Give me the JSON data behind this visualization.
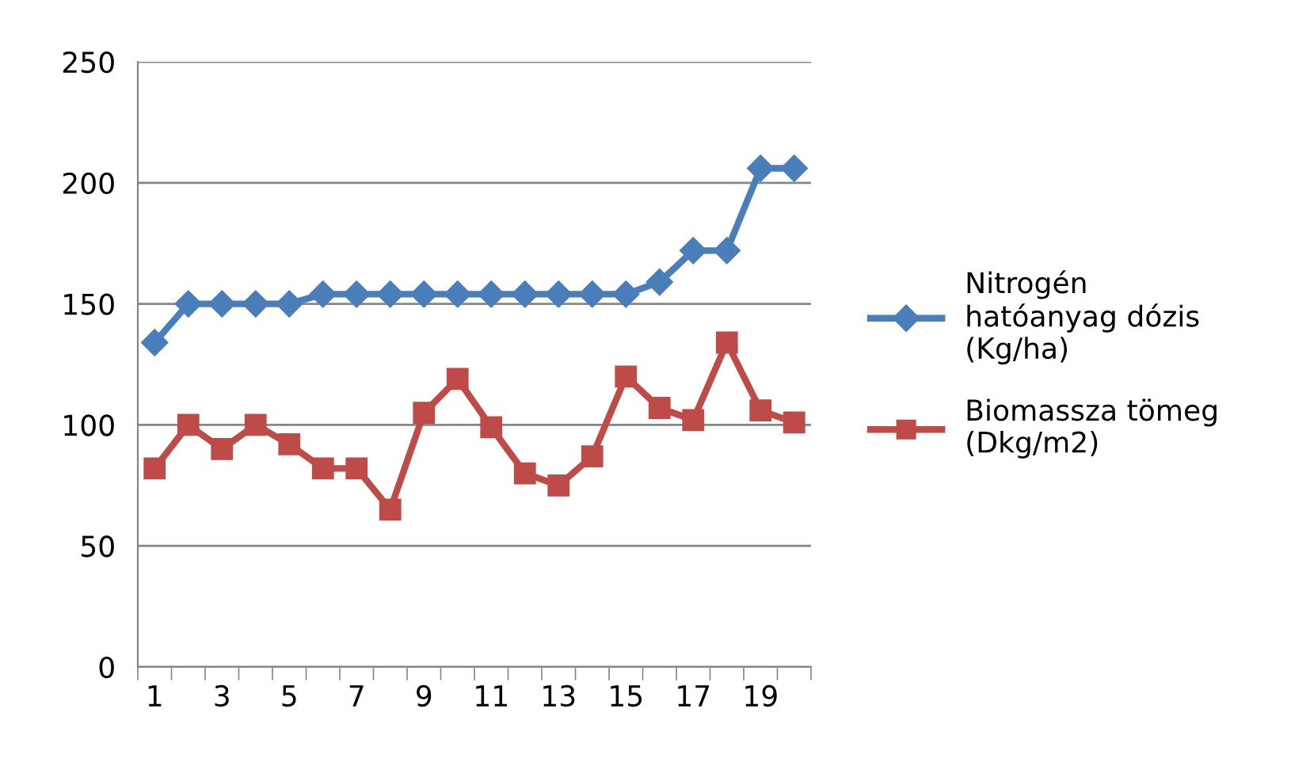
{
  "chart_data": {
    "type": "line",
    "categories": [
      "1",
      null,
      "3",
      null,
      "5",
      null,
      "7",
      null,
      "9",
      null,
      "11",
      null,
      "13",
      null,
      "15",
      null,
      "17",
      null,
      "19",
      null
    ],
    "series": [
      {
        "name": "Nitrogén hatóanyag dózis (Kg/ha)",
        "color": "#4a7ebb",
        "marker": "diamond",
        "values": [
          134,
          150,
          150,
          150,
          150,
          154,
          154,
          154,
          154,
          154,
          154,
          154,
          154,
          154,
          154,
          159,
          172,
          172,
          206,
          206
        ]
      },
      {
        "name": "Biomassza tömeg (Dkg/m2)",
        "color": "#be4b48",
        "marker": "square",
        "values": [
          82,
          100,
          90,
          100,
          92,
          82,
          82,
          65,
          105,
          119,
          99,
          80,
          75,
          87,
          120,
          107,
          102,
          134,
          106,
          101
        ]
      }
    ],
    "ylim": [
      0,
      250
    ],
    "yticks": [
      0,
      50,
      100,
      150,
      200,
      250
    ],
    "grid": "y",
    "legend": "right",
    "line_style": "solid"
  }
}
